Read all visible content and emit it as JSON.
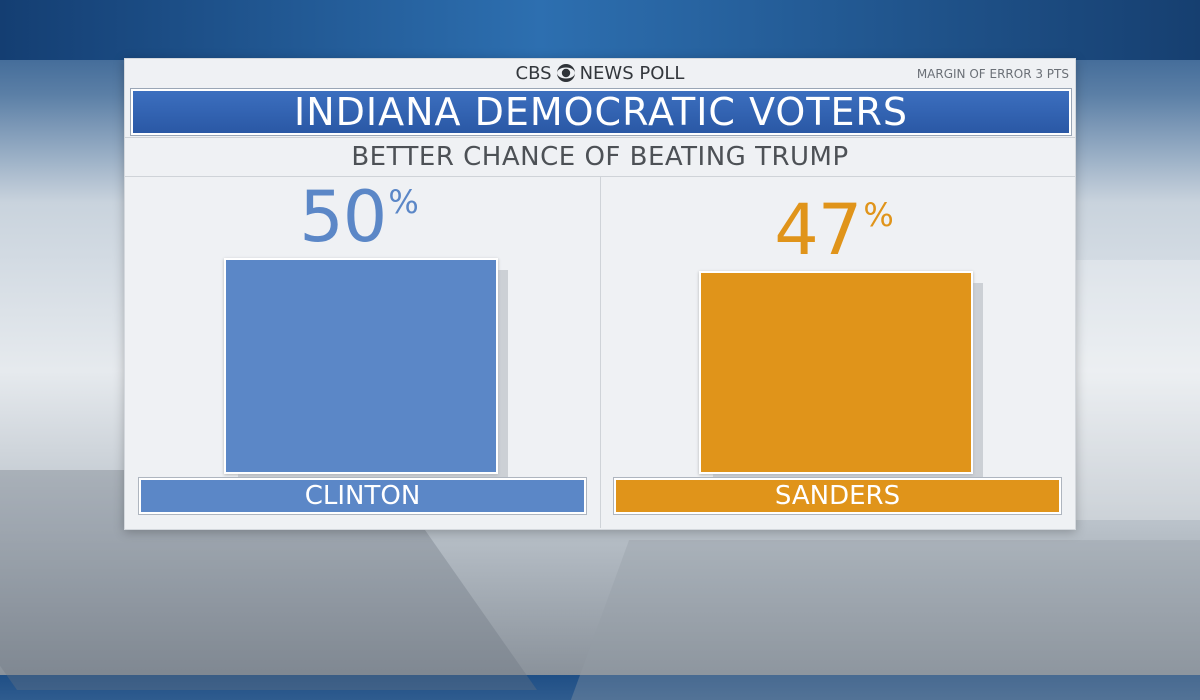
{
  "brand": {
    "left": "CBS",
    "right": "NEWS POLL"
  },
  "margin_note": "MARGIN OF ERROR 3 PTS",
  "colors": {
    "clinton": "#5b87c7",
    "sanders": "#e0941a",
    "title_bar": "#2f5faf"
  },
  "chart_data": {
    "type": "bar",
    "title": "INDIANA DEMOCRATIC VOTERS",
    "subtitle": "BETTER CHANCE OF BEATING TRUMP",
    "categories": [
      "CLINTON",
      "SANDERS"
    ],
    "values": [
      50,
      47
    ],
    "value_suffix": "%",
    "ylim": [
      0,
      50
    ],
    "grid": false,
    "legend": "none"
  }
}
